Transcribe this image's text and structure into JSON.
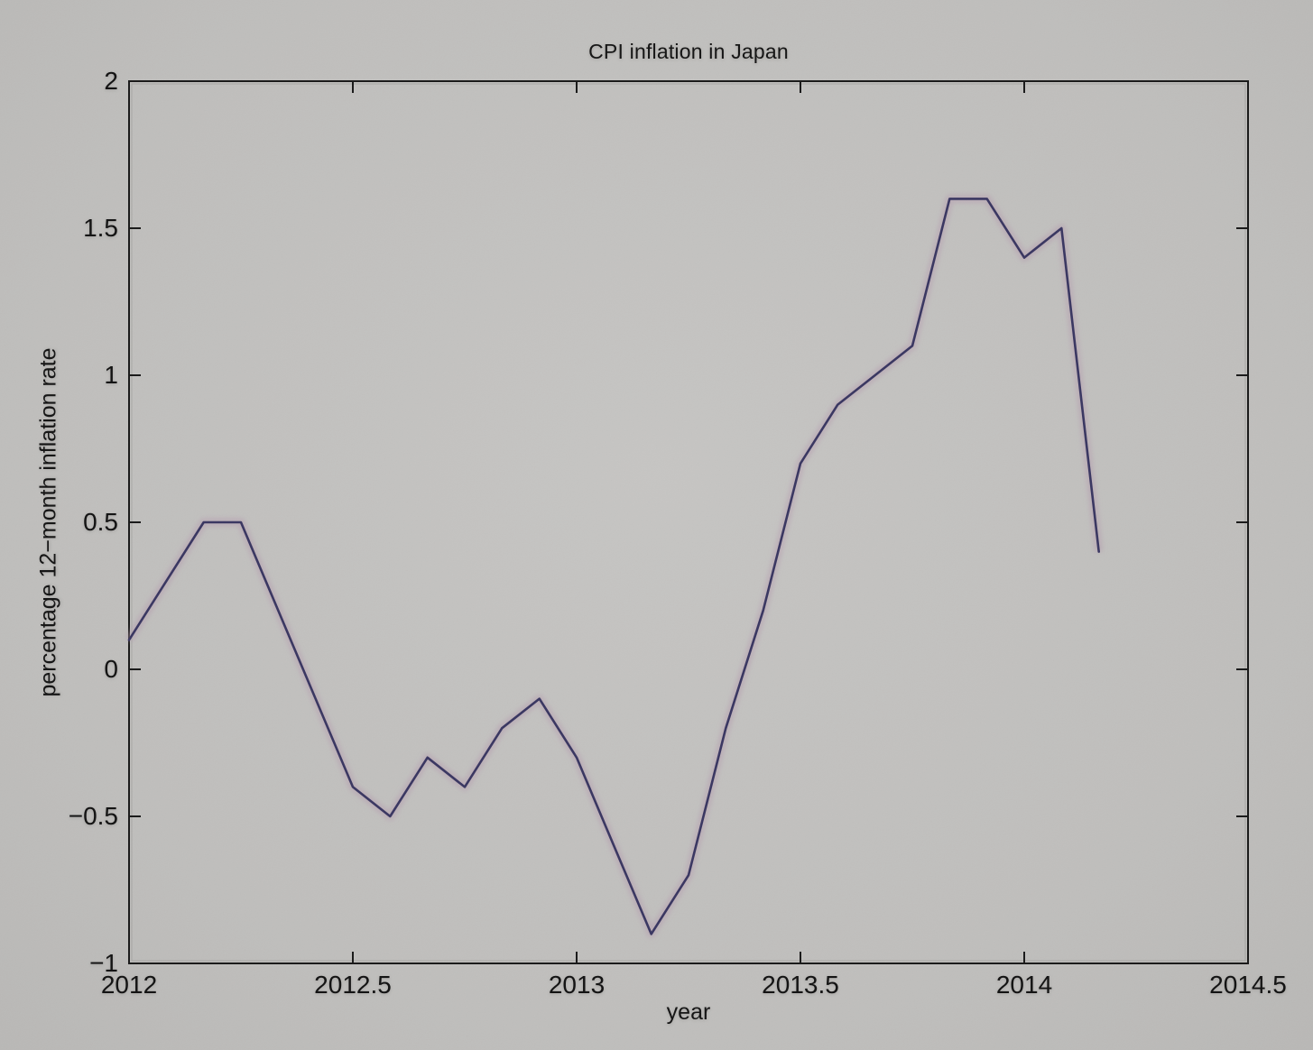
{
  "chart_data": {
    "type": "line",
    "title": "CPI inflation in Japan",
    "xlabel": "year",
    "ylabel": "percentage 12−month inflation rate",
    "xlim": [
      2012,
      2014.5
    ],
    "ylim": [
      -1,
      2
    ],
    "grid": false,
    "legend_position": "none",
    "xticks": {
      "values": [
        2012,
        2012.5,
        2013,
        2013.5,
        2014,
        2014.5
      ],
      "labels": [
        "2012",
        "2012.5",
        "2013",
        "2013.5",
        "2014",
        "2014.5"
      ]
    },
    "yticks": {
      "values": [
        -1,
        -0.5,
        0,
        0.5,
        1,
        1.5,
        2
      ],
      "labels": [
        "−1",
        "−0.5",
        "0",
        "0.5",
        "1",
        "1.5",
        "2"
      ]
    },
    "series": [
      {
        "name": "CPI inflation",
        "x": [
          2012.0,
          2012.0833,
          2012.1667,
          2012.25,
          2012.3333,
          2012.4167,
          2012.5,
          2012.5833,
          2012.6667,
          2012.75,
          2012.8333,
          2012.9167,
          2013.0,
          2013.0833,
          2013.1667,
          2013.25,
          2013.3333,
          2013.4167,
          2013.5,
          2013.5833,
          2013.6667,
          2013.75,
          2013.8333,
          2013.9167,
          2014.0,
          2014.0833,
          2014.1667
        ],
        "y": [
          0.1,
          0.3,
          0.5,
          0.5,
          0.2,
          -0.1,
          -0.4,
          -0.5,
          -0.3,
          -0.4,
          -0.2,
          -0.1,
          -0.3,
          -0.6,
          -0.9,
          -0.7,
          -0.2,
          0.2,
          0.7,
          0.9,
          1.0,
          1.1,
          1.6,
          1.6,
          1.4,
          1.5,
          0.4
        ]
      }
    ],
    "colors": {
      "line": "#3b3862",
      "line_glow": "#b499ae",
      "axis": "#1b1b1b",
      "text": "#161616",
      "background": "#c1c0be"
    }
  }
}
